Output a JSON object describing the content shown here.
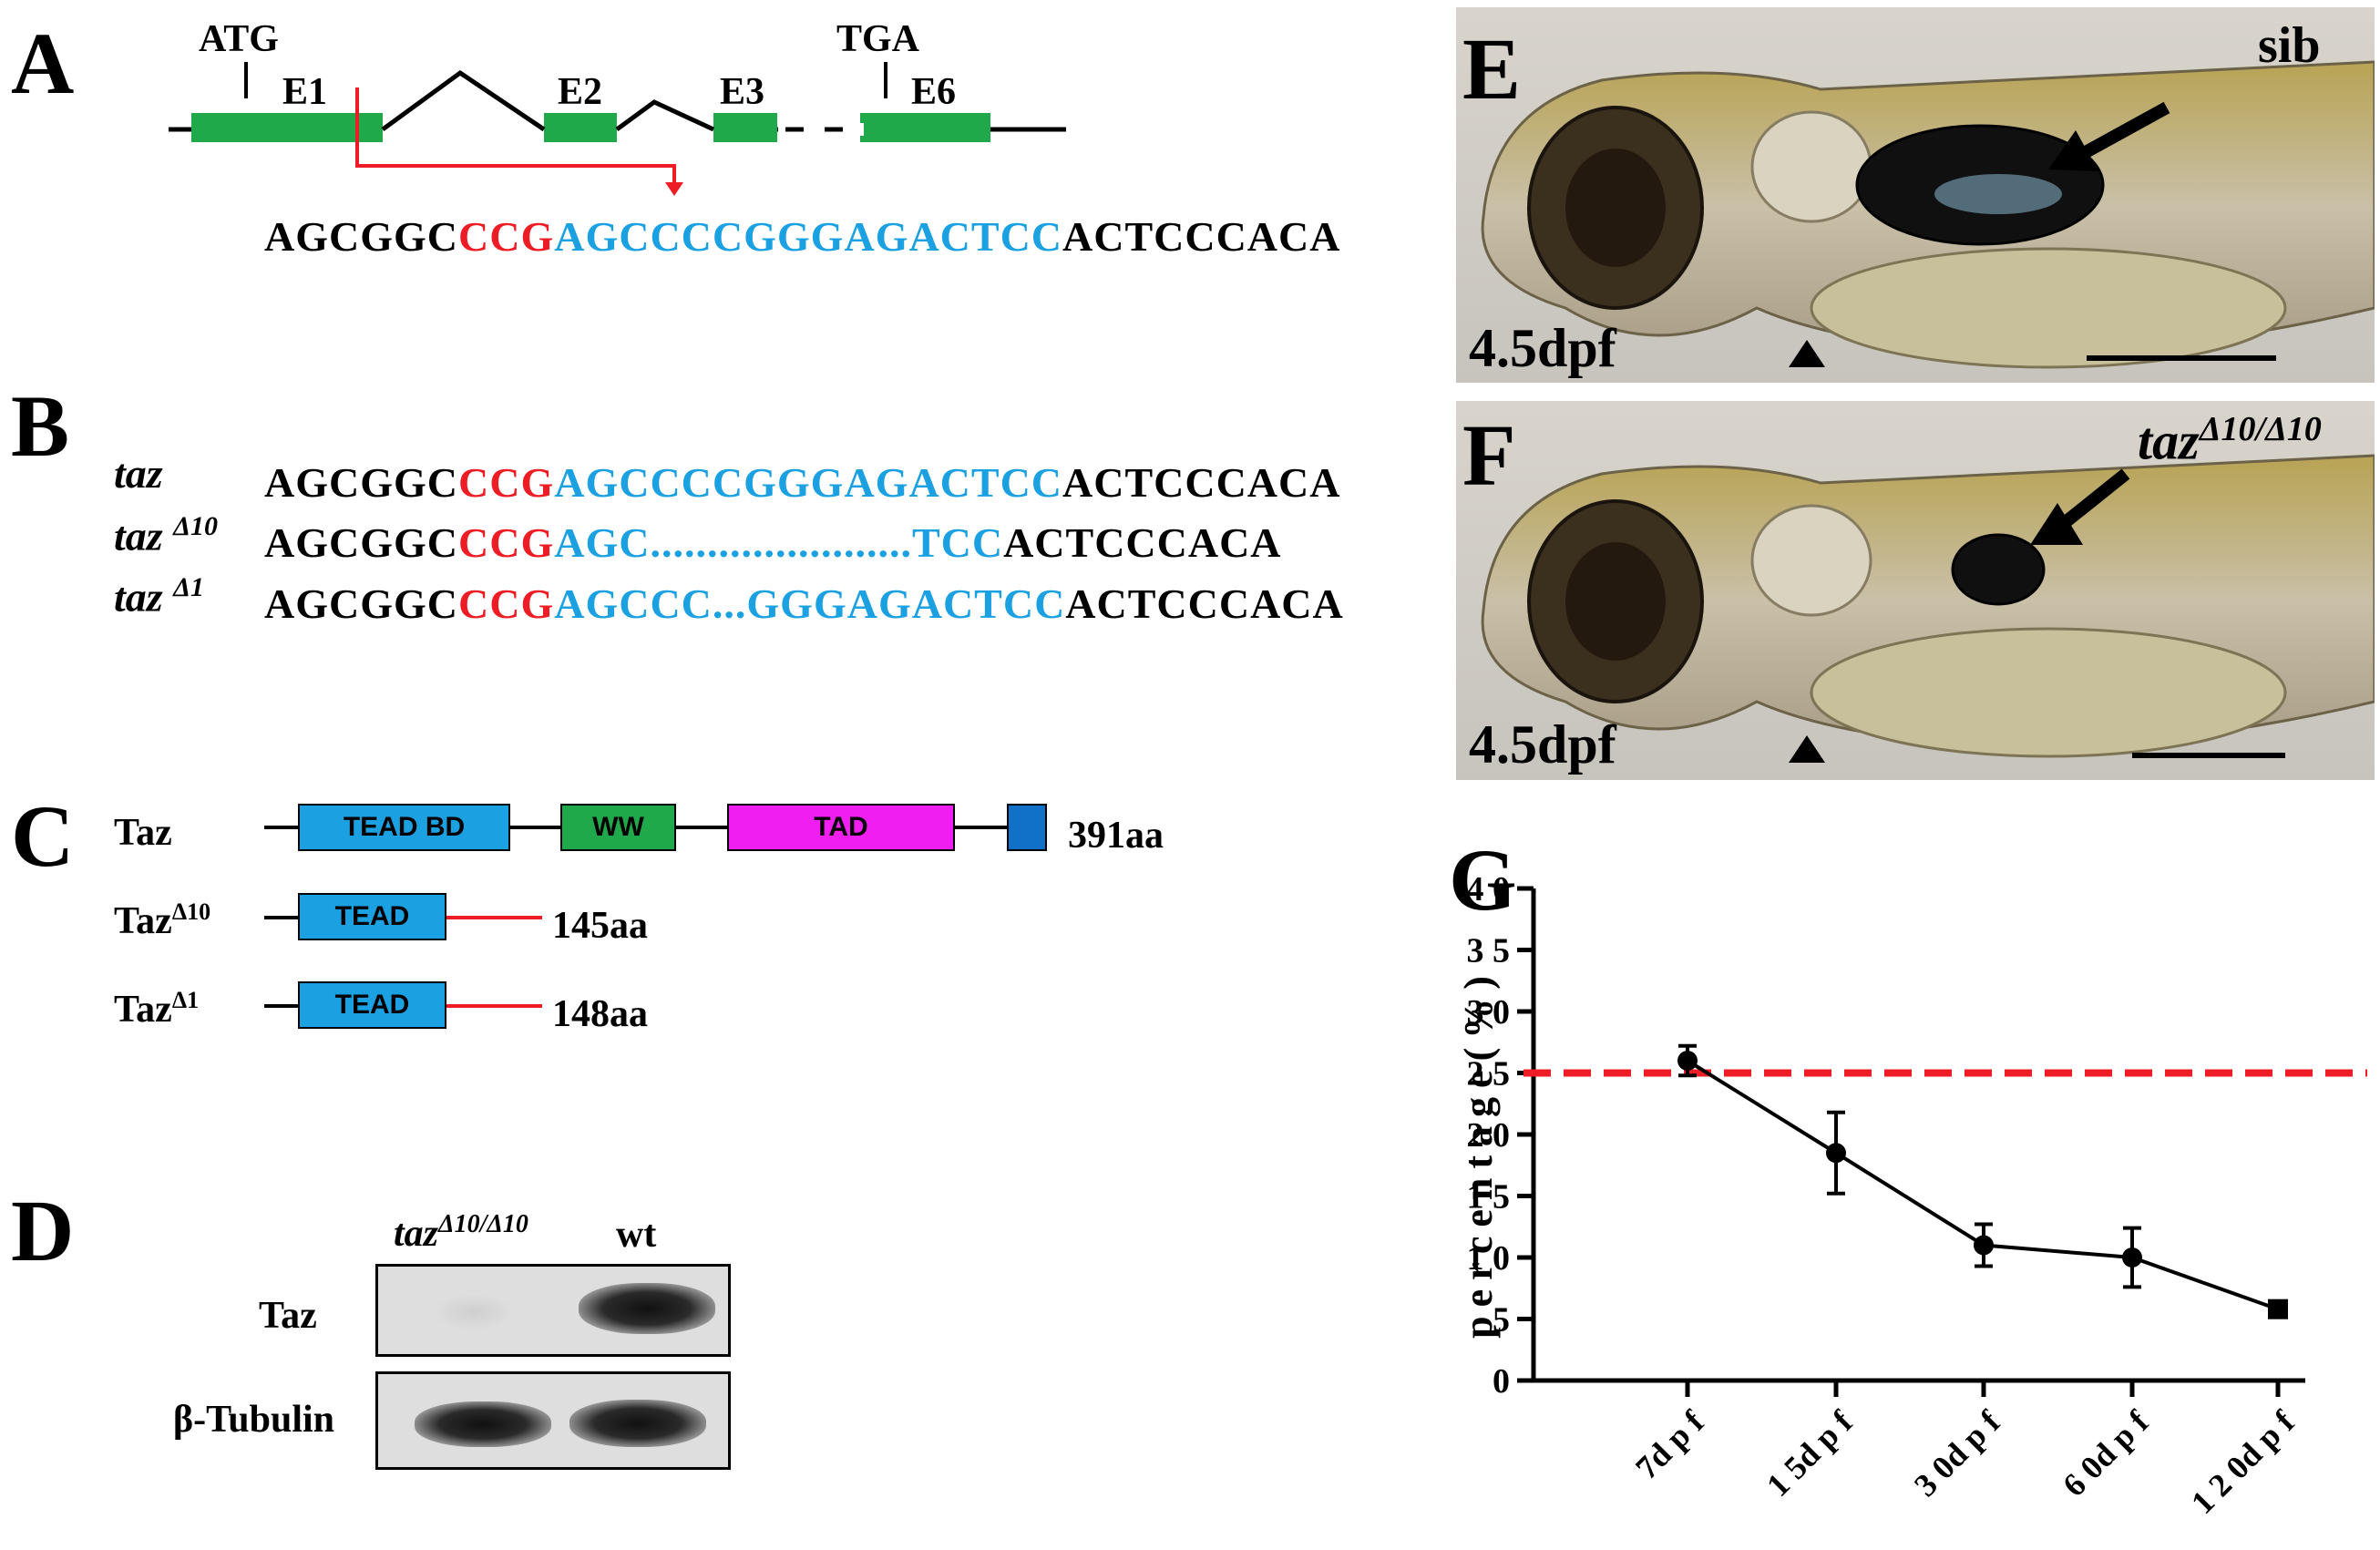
{
  "panels": {
    "A": {
      "letter": "A",
      "start_codon": "ATG",
      "stop_codon": "TGA",
      "exons": [
        "E1",
        "E2",
        "E3",
        "E6"
      ],
      "seq": {
        "black1": "AGCGGC",
        "red": "CCG",
        "blue": "AGCCCCGGGAGACTCC",
        "black2": "ACTCCCACA"
      }
    },
    "B": {
      "letter": "B",
      "rows": [
        {
          "name": "taz",
          "sup": "",
          "black1": "AGCGGC",
          "red": "CCG",
          "blue": "AGCCCCGGGAGACTCC",
          "black2": "ACTCCCACA"
        },
        {
          "name": "taz ",
          "sup": "Δ10",
          "black1": "AGCGGC",
          "red": "CCG",
          "blue": "AGC.......................TCC",
          "black2": "ACTCCCACA"
        },
        {
          "name": "taz ",
          "sup": "Δ1",
          "black1": "AGCGGC",
          "red": "CCG",
          "blue": "AGCCC...GGGAGACTCC",
          "black2": "ACTCCCACA"
        }
      ]
    },
    "C": {
      "letter": "C",
      "wt": {
        "label": "Taz",
        "domains": [
          "TEAD BD",
          "WW",
          "TAD"
        ],
        "length": "391aa"
      },
      "d10": {
        "label": "Taz",
        "sup": "Δ10",
        "domain": "TEAD",
        "length": "145aa"
      },
      "d1": {
        "label": "Taz",
        "sup": "Δ1",
        "domain": "TEAD",
        "length": "148aa"
      }
    },
    "D": {
      "letter": "D",
      "lanes": [
        "taz",
        "wt"
      ],
      "lane1_sup": "Δ10/Δ10",
      "rows": [
        "Taz",
        "β-Tubulin"
      ]
    },
    "E": {
      "letter": "E",
      "stage": "4.5dpf",
      "genotype": "sib"
    },
    "F": {
      "letter": "F",
      "stage": "4.5dpf",
      "genotype": "taz",
      "genotype_sup": "Δ10/Δ10"
    },
    "G": {
      "letter": "G"
    }
  },
  "chart_data": {
    "type": "line",
    "categories": [
      "7dpf",
      "15dpf",
      "30dpf",
      "60dpf",
      "120dpf"
    ],
    "series": [
      {
        "values": [
          26.0,
          18.5,
          11.0,
          10.0,
          5.8
        ],
        "errors": [
          1.2,
          3.3,
          1.7,
          2.4,
          0.5
        ]
      }
    ],
    "reference_line": {
      "y": 25,
      "color": "#ee1c24",
      "style": "dashed"
    },
    "ylabel": "percentage(%)",
    "ylim": [
      0,
      40
    ],
    "yticks": [
      "0",
      "5",
      "1 0",
      "1 5",
      "2 0",
      "2 5",
      "3 0",
      "3 5",
      "4 0"
    ],
    "xtick_labels": [
      "7d p f",
      "1 5d p f",
      "3 0d p f",
      "6 0d p f",
      "1 2 0d p f"
    ]
  }
}
